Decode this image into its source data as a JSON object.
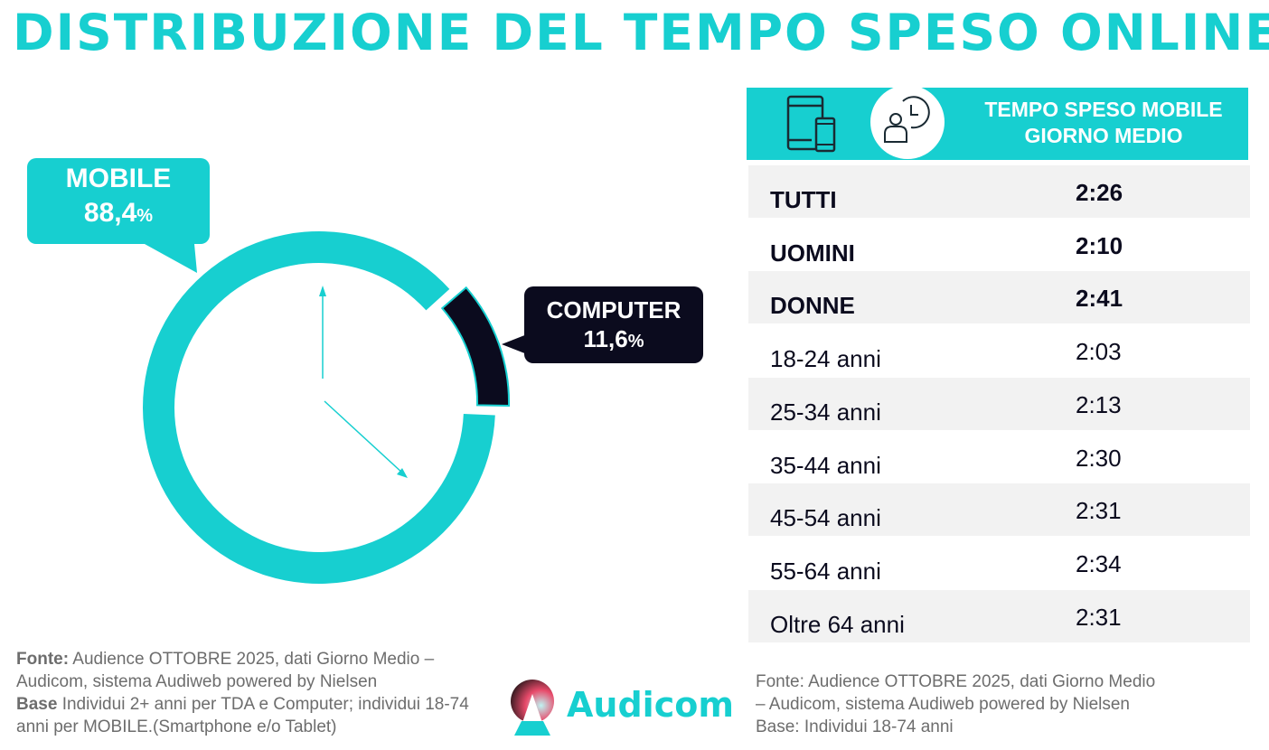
{
  "title": "DISTRIBUZIONE DEL TEMPO SPESO ONLINE",
  "chart_data": {
    "type": "pie",
    "style": "donut",
    "categories": [
      "MOBILE",
      "COMPUTER"
    ],
    "values": [
      88.4,
      11.6
    ],
    "labels": [
      "88,4",
      "11,6"
    ],
    "unit": "%",
    "colors": [
      "#17cfd0",
      "#0b0b1e"
    ]
  },
  "table": {
    "header": "TEMPO SPESO MOBILE GIORNO MEDIO",
    "header_line1": "TEMPO SPESO MOBILE",
    "header_line2": "GIORNO MEDIO",
    "icons": [
      "tablet-phone-icon",
      "person-clock-icon"
    ],
    "rows": [
      {
        "label": "TUTTI",
        "value": "2:26",
        "bold": true
      },
      {
        "label": "UOMINI",
        "value": "2:10",
        "bold": true
      },
      {
        "label": "DONNE",
        "value": "2:41",
        "bold": true
      },
      {
        "label": "18-24 anni",
        "value": "2:03"
      },
      {
        "label": "25-34 anni",
        "value": "2:13"
      },
      {
        "label": "35-44 anni",
        "value": "2:30"
      },
      {
        "label": "45-54 anni",
        "value": "2:31"
      },
      {
        "label": "55-64 anni",
        "value": "2:34"
      },
      {
        "label": "Oltre 64 anni",
        "value": "2:31"
      }
    ]
  },
  "source_left": {
    "k1": "Fonte:",
    "t1": " Audience OTTOBRE 2025, dati Giorno Medio – Audicom, sistema Audiweb powered by Nielsen",
    "k2": "Base",
    "t2": " Individui 2+ anni per TDA e Computer; individui 18-74 anni per MOBILE.(Smartphone e/o Tablet)"
  },
  "source_right": {
    "l1": "Fonte: Audience OTTOBRE 2025, dati Giorno Medio",
    "l2": "– Audicom, sistema Audiweb powered by Nielsen",
    "l3": "Base:  Individui 18-74 anni"
  },
  "logo": "Audicom"
}
